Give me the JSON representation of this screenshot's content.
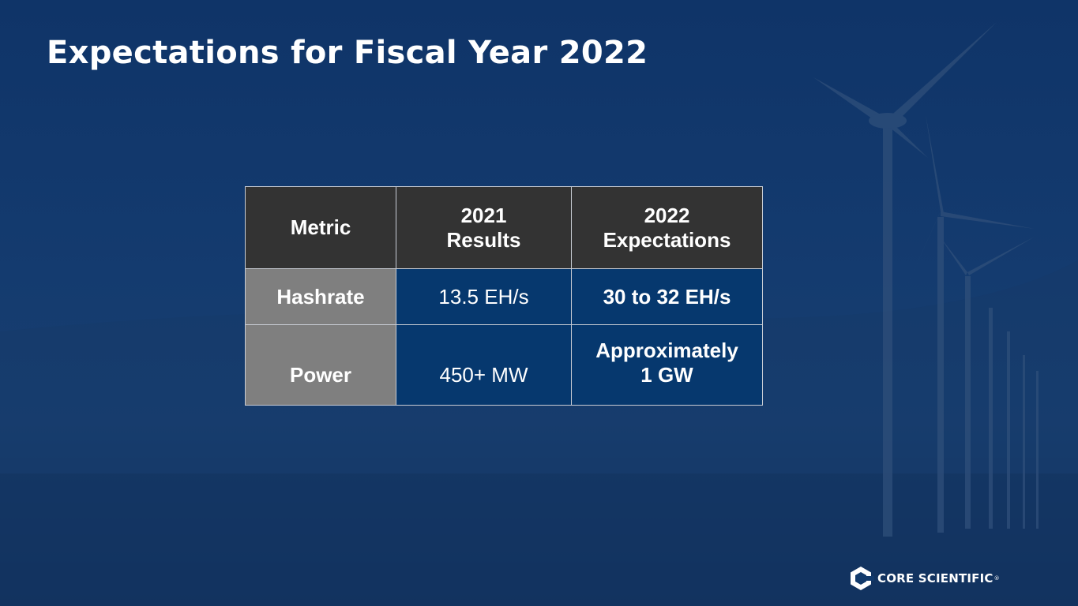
{
  "header": {
    "title": "Expectations for Fiscal Year 2022"
  },
  "table": {
    "columns": [
      [
        "Metric"
      ],
      [
        "2021",
        "Results"
      ],
      [
        "2022",
        "Expectations"
      ]
    ],
    "rows": [
      [
        [
          "Hashrate"
        ],
        [
          "13.5 EH/s"
        ],
        [
          "30 to 32 EH/s"
        ]
      ],
      [
        [
          "Power"
        ],
        [
          "450+ MW"
        ],
        [
          "Approximately",
          "1 GW"
        ]
      ]
    ]
  },
  "logo": {
    "name": "CORE SCIENTIFIC",
    "mark": "®"
  }
}
